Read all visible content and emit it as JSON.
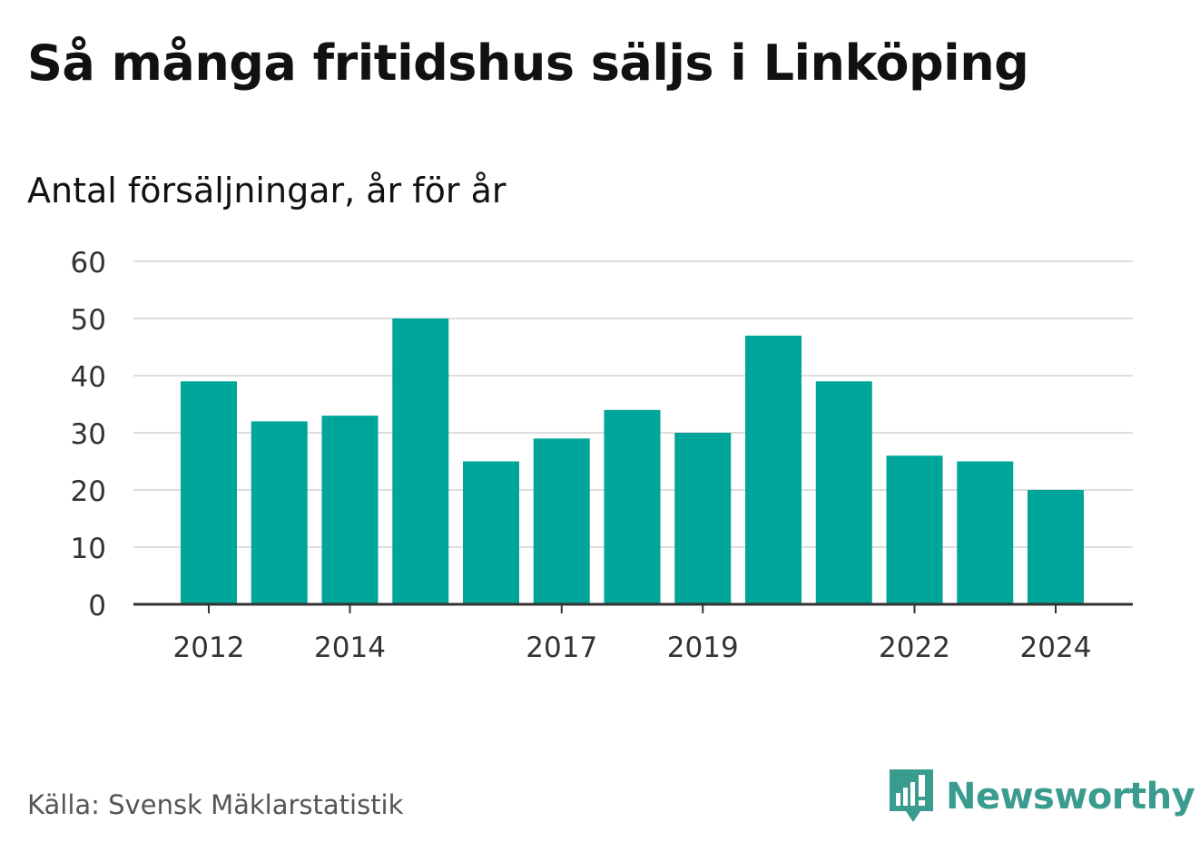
{
  "title": "Så många fritidshus säljs i Linköping",
  "subtitle": "Antal försäljningar, år för år",
  "source": "Källa: Svensk Mäklarstatistik",
  "brand": {
    "name": "Newsworthy",
    "icon": "newsworthy-logo-icon",
    "color": "#3a9b8f"
  },
  "chart_data": {
    "type": "bar",
    "categories": [
      "2012",
      "2013",
      "2014",
      "2015",
      "2016",
      "2017",
      "2018",
      "2019",
      "2020",
      "2021",
      "2022",
      "2023",
      "2024"
    ],
    "values": [
      39,
      32,
      33,
      50,
      25,
      29,
      34,
      30,
      47,
      39,
      26,
      25,
      20
    ],
    "x_tick_labels": [
      "2012",
      "2014",
      "2017",
      "2019",
      "2022",
      "2024"
    ],
    "y_ticks": [
      0,
      10,
      20,
      30,
      40,
      50,
      60
    ],
    "ylim": [
      0,
      60
    ],
    "grid": true,
    "bar_color": "#00a59a",
    "grid_color": "#dddddd",
    "axis_color": "#333333",
    "xlabel": "",
    "ylabel": ""
  }
}
